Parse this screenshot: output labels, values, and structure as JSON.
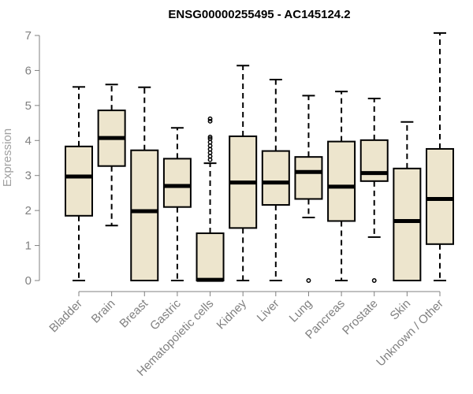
{
  "chart_data": {
    "type": "box",
    "title": "ENSG00000255495 - AC145124.2",
    "xlabel": "",
    "ylabel": "Expression",
    "ylim": [
      0,
      7
    ],
    "yticks": [
      "0",
      "1",
      "2",
      "3",
      "4",
      "5",
      "6",
      "7"
    ],
    "categories": [
      "Bladder",
      "Brain",
      "Breast",
      "Gastric",
      "Hematopoietic cells",
      "Kidney",
      "Liver",
      "Lung",
      "Pancreas",
      "Prostate",
      "Skin",
      "Unknown / Other"
    ],
    "boxes": [
      {
        "category": "Bladder",
        "whisker_low": 0,
        "q1": 1.85,
        "median": 2.97,
        "q3": 3.83,
        "whisker_high": 5.53,
        "outliers": []
      },
      {
        "category": "Brain",
        "whisker_low": 1.57,
        "q1": 3.27,
        "median": 4.07,
        "q3": 4.86,
        "whisker_high": 5.6,
        "outliers": []
      },
      {
        "category": "Breast",
        "whisker_low": 0,
        "q1": 0,
        "median": 1.98,
        "q3": 3.72,
        "whisker_high": 5.52,
        "outliers": []
      },
      {
        "category": "Gastric",
        "whisker_low": 0,
        "q1": 2.1,
        "median": 2.7,
        "q3": 3.48,
        "whisker_high": 4.36,
        "outliers": []
      },
      {
        "category": "Hematopoietic cells",
        "whisker_low": 0,
        "q1": 0,
        "median": 0.02,
        "q3": 1.35,
        "whisker_high": 3.35,
        "outliers": [
          3.45,
          3.55,
          3.65,
          3.75,
          3.85,
          3.95,
          4.05,
          4.1,
          4.55,
          4.62
        ]
      },
      {
        "category": "Kidney",
        "whisker_low": 0,
        "q1": 1.5,
        "median": 2.8,
        "q3": 4.12,
        "whisker_high": 6.14,
        "outliers": []
      },
      {
        "category": "Liver",
        "whisker_low": 0,
        "q1": 2.16,
        "median": 2.8,
        "q3": 3.7,
        "whisker_high": 5.74,
        "outliers": []
      },
      {
        "category": "Lung",
        "whisker_low": 1.8,
        "q1": 2.33,
        "median": 3.1,
        "q3": 3.53,
        "whisker_high": 5.28,
        "outliers": [
          0
        ]
      },
      {
        "category": "Pancreas",
        "whisker_low": 0,
        "q1": 1.7,
        "median": 2.68,
        "q3": 3.97,
        "whisker_high": 5.4,
        "outliers": []
      },
      {
        "category": "Prostate",
        "whisker_low": 1.24,
        "q1": 2.84,
        "median": 3.07,
        "q3": 4.01,
        "whisker_high": 5.2,
        "outliers": [
          0
        ]
      },
      {
        "category": "Skin",
        "whisker_low": 0,
        "q1": 0,
        "median": 1.7,
        "q3": 3.2,
        "whisker_high": 4.53,
        "outliers": []
      },
      {
        "category": "Unknown / Other",
        "whisker_low": 0,
        "q1": 1.04,
        "median": 2.33,
        "q3": 3.76,
        "whisker_high": 7.07,
        "outliers": []
      }
    ],
    "grid": false,
    "colors": {
      "box_fill": "#ede5cd",
      "box_stroke": "#000000",
      "axis": "#808080",
      "title": "#000000"
    }
  }
}
